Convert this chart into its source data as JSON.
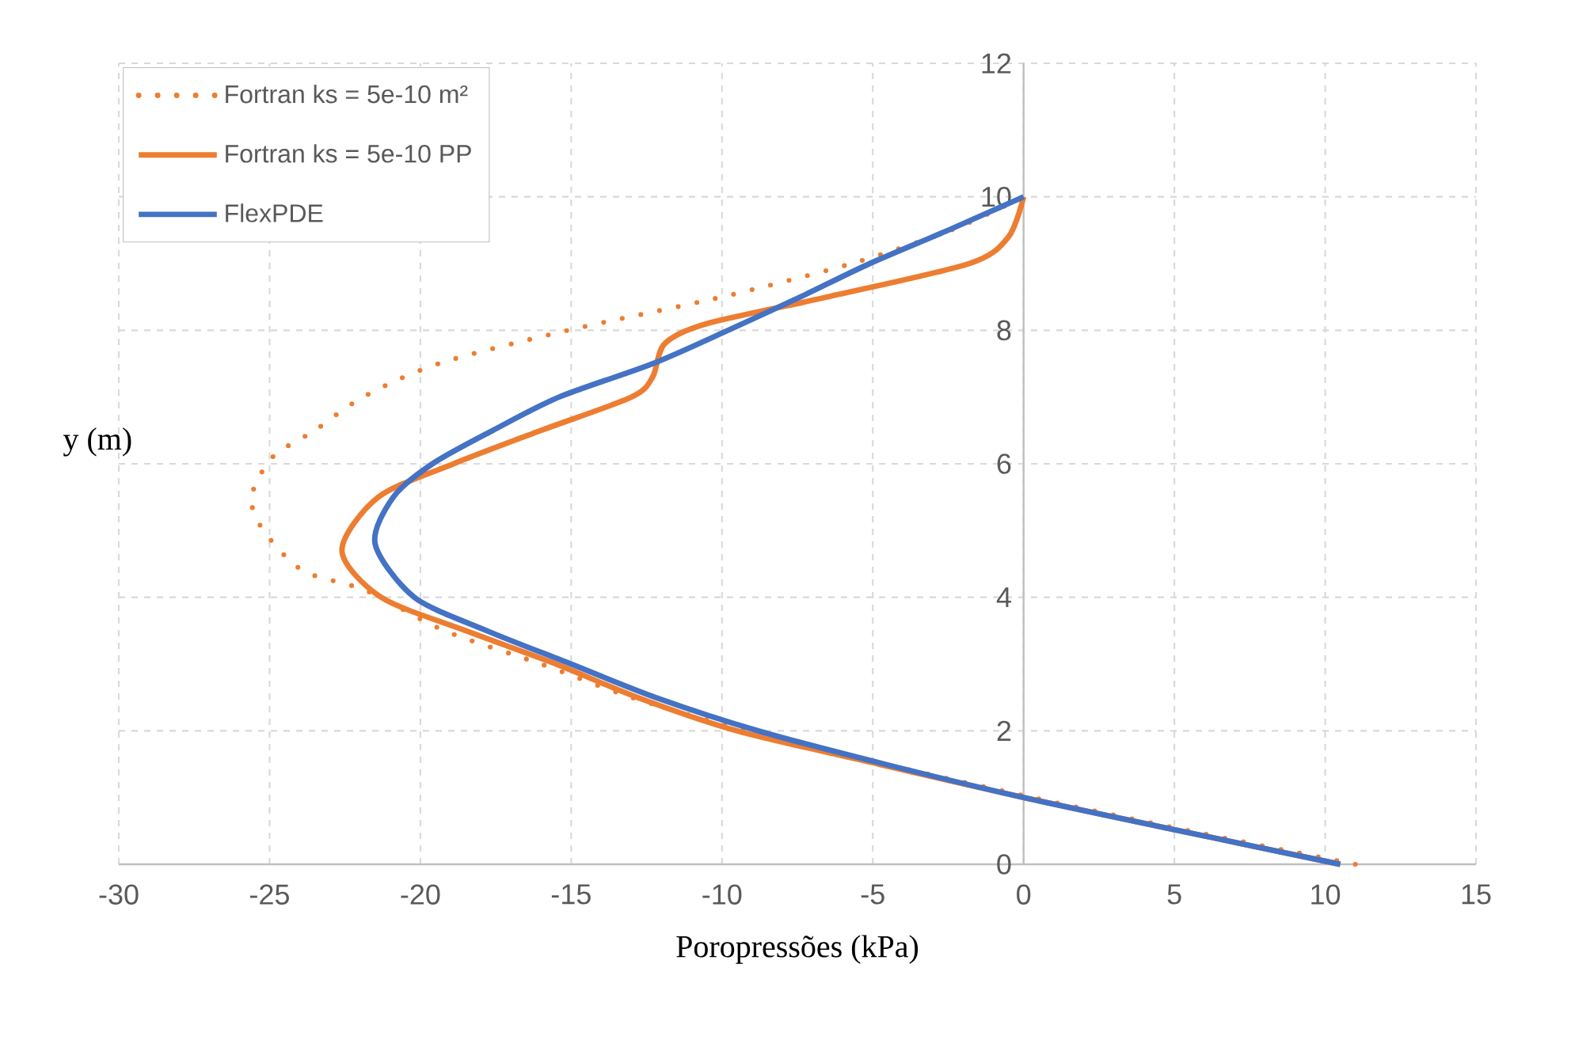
{
  "chart_data": {
    "type": "line",
    "xlabel": "Poropressões (kPa)",
    "ylabel": "y (m)",
    "xlim": [
      -30,
      15
    ],
    "ylim": [
      0,
      12
    ],
    "xticks": [
      -30,
      -25,
      -20,
      -15,
      -10,
      -5,
      0,
      5,
      10,
      15
    ],
    "yticks": [
      0,
      2,
      4,
      6,
      8,
      10,
      12
    ],
    "grid": true,
    "legend": "top left",
    "marker": "none",
    "series": [
      {
        "name": "Fortran ks = 5e-10 m²",
        "color": "#ed7d31",
        "line_style": "dotted",
        "x": [
          11.0,
          5.5,
          0.3,
          -4.6,
          -9.2,
          -13.0,
          -16.0,
          -19.2,
          -21.8,
          -23.9,
          -25.2,
          -25.6,
          -24.9,
          -23.5,
          -21.9,
          -19.4,
          -15.1,
          -10.0,
          -5.7,
          -2.4,
          0
        ],
        "values": [
          0,
          0.5,
          1,
          1.5,
          2,
          2.5,
          3,
          3.5,
          4.1,
          4.4,
          5.0,
          5.5,
          6.1,
          6.5,
          7,
          7.5,
          8,
          8.5,
          9,
          9.5,
          10
        ]
      },
      {
        "name": "Fortran ks = 5e-10 PP",
        "color": "#ed7d31",
        "line_style": "solid",
        "x": [
          10.5,
          5.2,
          0,
          -4.8,
          -9.5,
          -12.8,
          -15.5,
          -18.5,
          -21.3,
          -22.6,
          -21.4,
          -18.9,
          -16.0,
          -13.0,
          -12.3,
          -11.9,
          -10.5,
          -6.5,
          -1.8,
          -0.5,
          0
        ],
        "values": [
          0,
          0.5,
          1,
          1.5,
          2,
          2.5,
          3,
          3.5,
          4,
          4.7,
          5.5,
          6,
          6.5,
          7,
          7.3,
          7.8,
          8.1,
          8.5,
          9,
          9.4,
          10
        ]
      },
      {
        "name": "FlexPDE",
        "color": "#4472c4",
        "line_style": "solid",
        "x": [
          10.5,
          5.2,
          0,
          -4.6,
          -8.8,
          -12.2,
          -15.0,
          -17.8,
          -20.2,
          -21.5,
          -20.9,
          -19.6,
          -17.6,
          -15.4,
          -12.3,
          -9.8,
          -7.4,
          -5.1,
          -2.5,
          0
        ],
        "values": [
          0,
          0.5,
          1,
          1.5,
          2,
          2.5,
          3,
          3.5,
          4,
          4.8,
          5.5,
          6,
          6.5,
          7,
          7.5,
          8,
          8.5,
          9,
          9.5,
          10
        ]
      }
    ]
  }
}
